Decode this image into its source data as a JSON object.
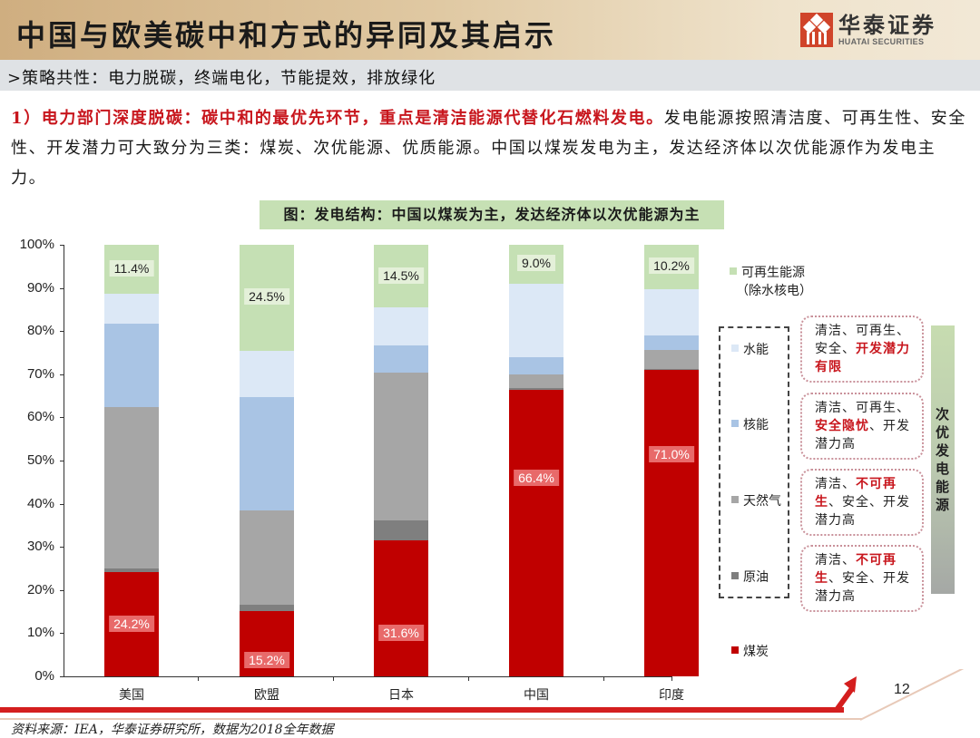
{
  "header": {
    "title": "中国与欧美碳中和方式的异同及其启示",
    "logo_cn": "华泰证券",
    "logo_en": "HUATAI SECURITIES"
  },
  "subheader": ">策略共性：电力脱碳，终端电化，节能提效，排放绿化",
  "body": {
    "highlight": "1）电力部门深度脱碳：碳中和的最优先环节，重点是清洁能源代替化石燃料发电。",
    "text": "发电能源按照清洁度、可再生性、安全性、开发潜力可大致分为三类：煤炭、次优能源、优质能源。中国以煤炭发电为主，发达经济体以次优能源作为发电主力。"
  },
  "figure_title": "图：发电结构：中国以煤炭为主，发达经济体以次优能源为主",
  "chart_data": {
    "type": "bar",
    "stacked": true,
    "title": "图：发电结构：中国以煤炭为主，发达经济体以次优能源为主",
    "xlabel": "",
    "ylabel": "",
    "ylim": [
      0,
      100
    ],
    "yticks": [
      "0%",
      "10%",
      "20%",
      "30%",
      "40%",
      "50%",
      "60%",
      "70%",
      "80%",
      "90%",
      "100%"
    ],
    "categories": [
      "美国",
      "欧盟",
      "日本",
      "中国",
      "印度"
    ],
    "series": [
      {
        "name": "煤炭",
        "color": "#c00000",
        "values": [
          24.2,
          15.2,
          31.6,
          66.4,
          71.0
        ],
        "labels": [
          "24.2%",
          "15.2%",
          "31.6%",
          "66.4%",
          "71.0%"
        ]
      },
      {
        "name": "原油",
        "color": "#7f7f7f",
        "values": [
          0.8,
          1.5,
          4.6,
          0.4,
          0.2
        ]
      },
      {
        "name": "天然气",
        "color": "#a6a6a6",
        "values": [
          37.4,
          21.7,
          34.2,
          3.2,
          4.4
        ]
      },
      {
        "name": "核能",
        "color": "#a9c4e4",
        "values": [
          19.3,
          26.3,
          6.3,
          4.0,
          3.4
        ]
      },
      {
        "name": "水能",
        "color": "#dce8f6",
        "values": [
          6.9,
          10.8,
          8.8,
          17.0,
          10.8
        ]
      },
      {
        "name": "可再生能源（除水核电）",
        "color": "#c5e0b4",
        "values": [
          11.4,
          24.5,
          14.5,
          9.0,
          10.2
        ],
        "labels": [
          "11.4%",
          "24.5%",
          "14.5%",
          "9.0%",
          "10.2%"
        ]
      }
    ],
    "legend_position": "right"
  },
  "legend": {
    "renewable_line1": "可再生能源",
    "renewable_line2": "（除水核电）",
    "hydro": "水能",
    "nuclear": "核能",
    "gas": "天然气",
    "oil": "原油",
    "coal": "煤炭"
  },
  "notes": [
    {
      "plain1": "清洁、可再生、",
      "plain2": "安全、",
      "red": "开发潜力有限",
      "plain3": ""
    },
    {
      "plain1": "清洁、可再生、",
      "red": "安全隐忧",
      "plain3": "、开发潜力高"
    },
    {
      "plain1": "清洁、",
      "red": "不可再生",
      "plain3": "、安全、开发潜力高"
    },
    {
      "plain1": "清洁、",
      "red": "不可再生",
      "plain3": "、安全、开发潜力高"
    }
  ],
  "side_label": "次优发电能源",
  "page_number": "12",
  "source": "资料来源：IEA，华泰证券研究所，数据为2018全年数据"
}
